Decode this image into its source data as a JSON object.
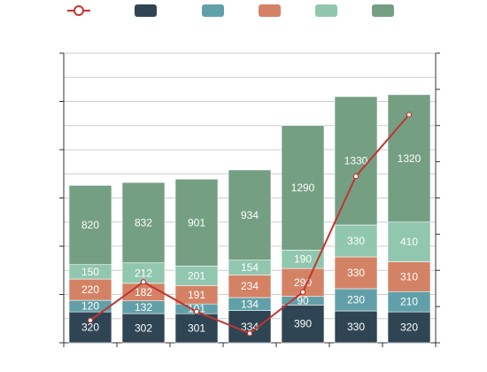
{
  "chart_data": {
    "type": "bar",
    "stacked": true,
    "categories": [
      "",
      "",
      "",
      "",
      "",
      "",
      ""
    ],
    "series": [
      {
        "color": "#2f4554",
        "values": [
          320,
          302,
          301,
          334,
          390,
          330,
          320
        ]
      },
      {
        "color": "#61a0a8",
        "values": [
          120,
          132,
          101,
          134,
          90,
          230,
          210
        ]
      },
      {
        "color": "#d48265",
        "values": [
          220,
          182,
          191,
          234,
          290,
          330,
          310
        ]
      },
      {
        "color": "#91c7ae",
        "values": [
          150,
          212,
          201,
          154,
          190,
          330,
          410
        ]
      },
      {
        "color": "#749f83",
        "values": [
          820,
          832,
          901,
          934,
          1290,
          1330,
          1320
        ]
      }
    ],
    "line": {
      "color": "#c23531",
      "axis": "right",
      "values": [
        31,
        84,
        43,
        13,
        70,
        230,
        315
      ]
    },
    "ylim": [
      0,
      3000
    ],
    "ylim_right": [
      0,
      400
    ],
    "legend": "top",
    "grid": true,
    "data_labels": true
  }
}
